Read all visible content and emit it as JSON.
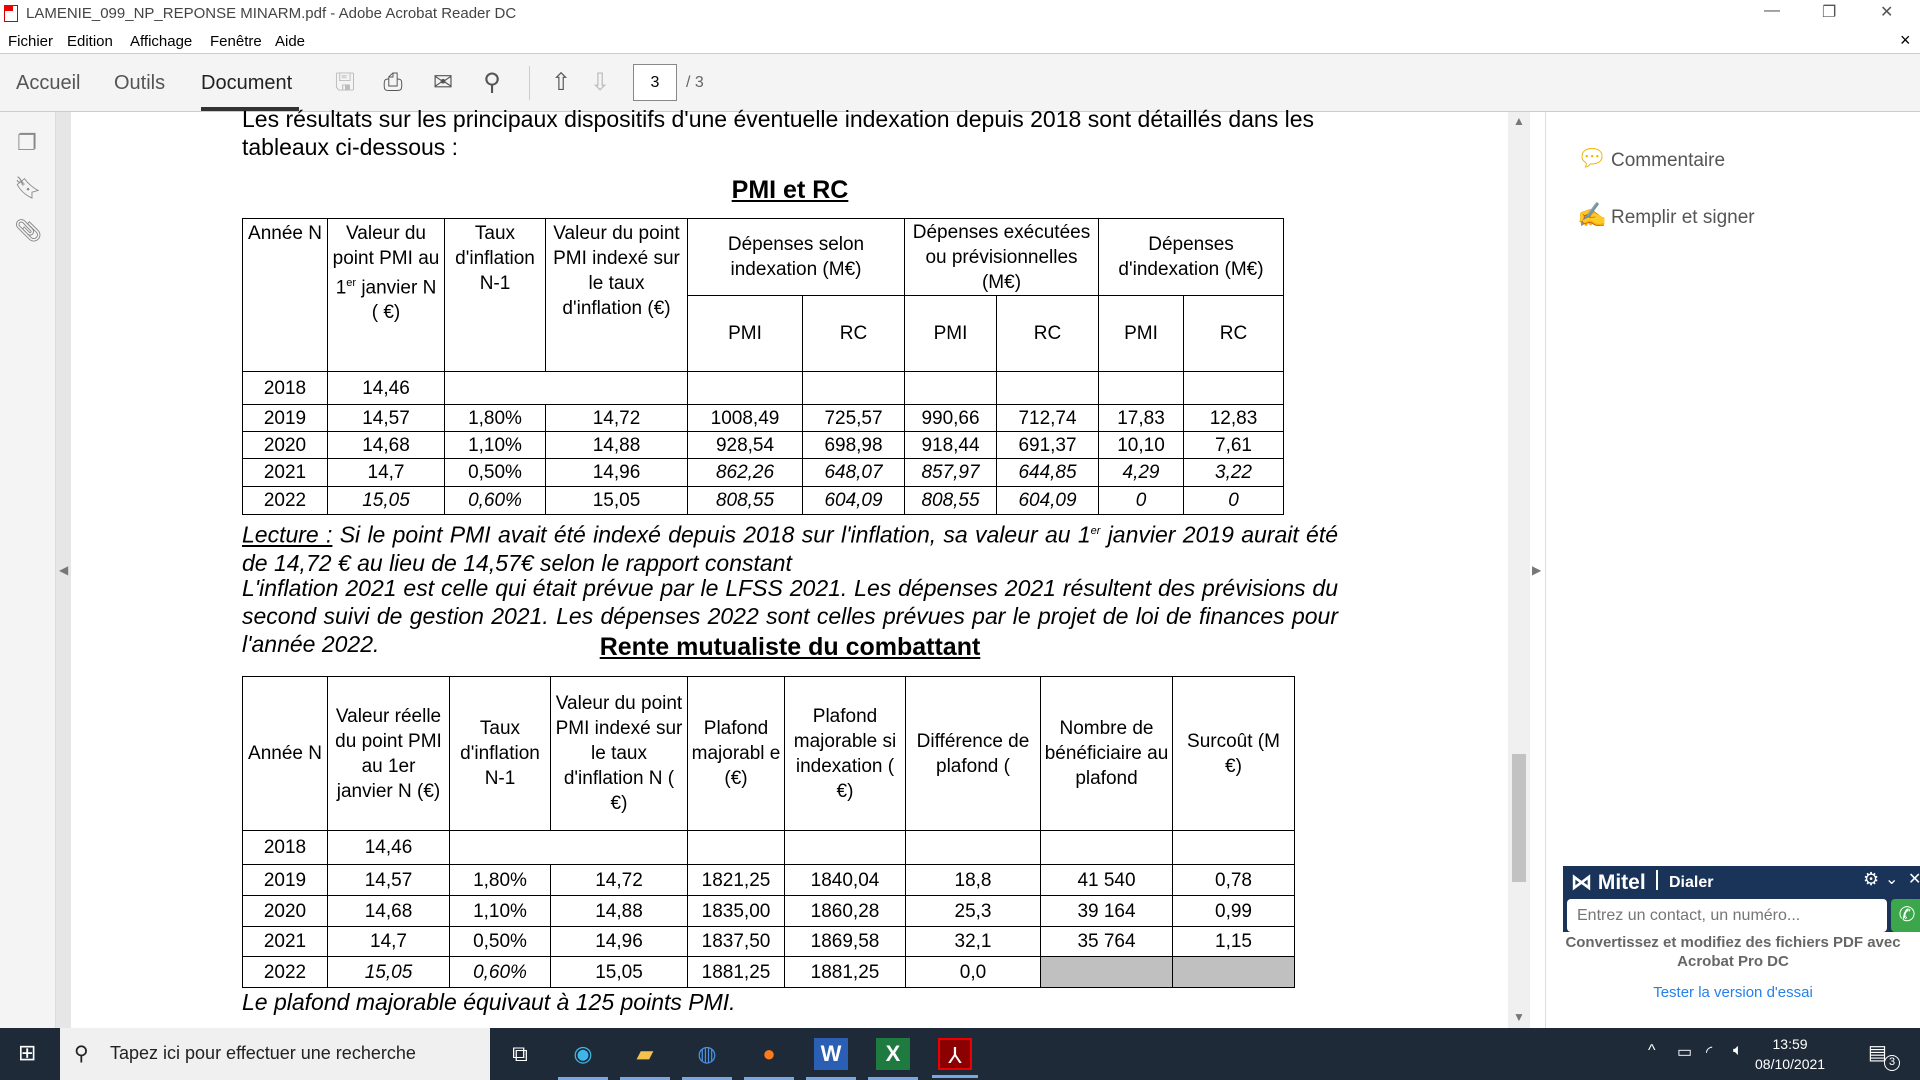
{
  "window": {
    "title": "LAMENIE_099_NP_REPONSE MINARM.pdf - Adobe Acrobat Reader DC",
    "minimize": "—",
    "restore": "❐",
    "close": "✕"
  },
  "menu": [
    "Fichier",
    "Edition",
    "Affichage",
    "Fenêtre",
    "Aide"
  ],
  "menu_close": "×",
  "toolbar": {
    "tabs": [
      "Accueil",
      "Outils",
      "Document"
    ],
    "active_tab": "Document",
    "page_current": "3",
    "page_total": "/ 3",
    "icons": [
      "save-icon",
      "print-icon",
      "mail-icon",
      "search-icon",
      "page-up-icon",
      "page-down-icon"
    ]
  },
  "doc": {
    "intro": "Les résultats sur les principaux dispositifs d'une éventuelle indexation depuis 2018 sont détaillés dans les tableaux ci-dessous :",
    "title1": "PMI et RC",
    "table1": {
      "headers": {
        "annee": "Année N",
        "valeur_a": "Valeur du point PMI au 1",
        "valeur_sup": "er",
        "valeur_b": " janvier N ( €)",
        "taux": "Taux d'inflation N-1",
        "indexe": "Valeur du point PMI indexé sur le taux d'inflation (€)",
        "g1": "Dépenses selon indexation (M€)",
        "g2": "Dépenses exécutées ou prévisionnelles (M€)",
        "g3": "Dépenses d'indexation (M€)",
        "sub": [
          "PMI",
          "RC",
          "PMI",
          "RC",
          "PMI",
          "RC"
        ]
      },
      "rows": [
        {
          "cells": [
            {
              "v": "2018"
            },
            {
              "v": "14,46"
            },
            {
              "v": "",
              "span": 2
            },
            {
              "v": ""
            },
            {
              "v": ""
            },
            {
              "v": ""
            },
            {
              "v": ""
            },
            {
              "v": ""
            },
            {
              "v": ""
            }
          ]
        },
        {
          "cells": [
            {
              "v": "2019"
            },
            {
              "v": "14,57"
            },
            {
              "v": "1,80%"
            },
            {
              "v": "14,72"
            },
            {
              "v": "1008,49"
            },
            {
              "v": "725,57"
            },
            {
              "v": "990,66"
            },
            {
              "v": "712,74"
            },
            {
              "v": "17,83"
            },
            {
              "v": "12,83"
            }
          ]
        },
        {
          "cells": [
            {
              "v": "2020"
            },
            {
              "v": "14,68"
            },
            {
              "v": "1,10%"
            },
            {
              "v": "14,88"
            },
            {
              "v": "928,54"
            },
            {
              "v": "698,98"
            },
            {
              "v": "918,44"
            },
            {
              "v": "691,37"
            },
            {
              "v": "10,10"
            },
            {
              "v": "7,61"
            }
          ]
        },
        {
          "cells": [
            {
              "v": "2021"
            },
            {
              "v": "14,7"
            },
            {
              "v": "0,50%"
            },
            {
              "v": "14,96"
            },
            {
              "v": "862,26",
              "italic": true
            },
            {
              "v": "648,07",
              "italic": true
            },
            {
              "v": "857,97",
              "italic": true
            },
            {
              "v": "644,85",
              "italic": true
            },
            {
              "v": "4,29",
              "italic": true
            },
            {
              "v": "3,22",
              "italic": true
            }
          ]
        },
        {
          "cells": [
            {
              "v": "2022"
            },
            {
              "v": "15,05",
              "italic": true
            },
            {
              "v": "0,60%",
              "italic": true
            },
            {
              "v": "15,05"
            },
            {
              "v": "808,55",
              "italic": true
            },
            {
              "v": "604,09",
              "italic": true
            },
            {
              "v": "808,55",
              "italic": true
            },
            {
              "v": "604,09",
              "italic": true
            },
            {
              "v": "0",
              "italic": true
            },
            {
              "v": "0",
              "italic": true
            }
          ]
        }
      ]
    },
    "lecture_label": "Lecture :",
    "lecture_a": " Si le point PMI avait été indexé depuis 2018 sur l'inflation, sa valeur au 1",
    "lecture_sup": "er",
    "lecture_b": " janvier 2019 aurait été de 14,72 € au lieu de 14,57€ selon le rapport constant",
    "note": "L'inflation 2021 est celle qui était prévue par le LFSS 2021. Les dépenses 2021 résultent des prévisions du second suivi de gestion 2021. Les dépenses 2022 sont celles prévues par le projet de loi de finances pour l'année 2022.",
    "title2": "Rente mutualiste du combattant",
    "table2": {
      "headers": [
        "Année N",
        "Valeur réelle du point PMI au 1er janvier N (€)",
        "Taux d'inflation N-1",
        "Valeur du point PMI indexé sur le taux d'inflation N ( €)",
        "Plafond majorabl e (€)",
        "Plafond majorable si indexation ( €)",
        "Différence de plafond (",
        "Nombre de bénéficiaire au plafond",
        "Surcoût (M €)"
      ],
      "rows": [
        {
          "cells": [
            {
              "v": "2018"
            },
            {
              "v": "14,46"
            },
            {
              "v": "",
              "span": 2
            },
            {
              "v": ""
            },
            {
              "v": ""
            },
            {
              "v": ""
            },
            {
              "v": ""
            },
            {
              "v": ""
            }
          ]
        },
        {
          "cells": [
            {
              "v": "2019"
            },
            {
              "v": "14,57"
            },
            {
              "v": "1,80%"
            },
            {
              "v": "14,72"
            },
            {
              "v": "1821,25"
            },
            {
              "v": "1840,04"
            },
            {
              "v": "18,8"
            },
            {
              "v": "41 540"
            },
            {
              "v": "0,78"
            }
          ]
        },
        {
          "cells": [
            {
              "v": "2020"
            },
            {
              "v": "14,68"
            },
            {
              "v": "1,10%"
            },
            {
              "v": "14,88"
            },
            {
              "v": "1835,00"
            },
            {
              "v": "1860,28"
            },
            {
              "v": "25,3"
            },
            {
              "v": "39 164"
            },
            {
              "v": "0,99"
            }
          ]
        },
        {
          "cells": [
            {
              "v": "2021"
            },
            {
              "v": "14,7"
            },
            {
              "v": "0,50%"
            },
            {
              "v": "14,96"
            },
            {
              "v": "1837,50"
            },
            {
              "v": "1869,58"
            },
            {
              "v": "32,1"
            },
            {
              "v": "35 764"
            },
            {
              "v": "1,15"
            }
          ]
        },
        {
          "cells": [
            {
              "v": "2022"
            },
            {
              "v": "15,05",
              "italic": true
            },
            {
              "v": "0,60%",
              "italic": true
            },
            {
              "v": "15,05"
            },
            {
              "v": "1881,25"
            },
            {
              "v": "1881,25"
            },
            {
              "v": "0,0"
            },
            {
              "v": "",
              "shaded": true
            },
            {
              "v": "",
              "shaded": true
            }
          ]
        }
      ]
    },
    "footnote": "Le plafond majorable équivaut à 125 points PMI."
  },
  "right_panel": {
    "tools": [
      {
        "label": "Commentaire",
        "icon": "comment-icon"
      },
      {
        "label": "Remplir et signer",
        "icon": "fill-sign-icon"
      }
    ],
    "promo": "Convertissez et modifiez des fichiers PDF avec Acrobat Pro DC",
    "trial": "Tester la version d'essai"
  },
  "mitel": {
    "logo": "Mitel",
    "title": "Dialer",
    "placeholder": "Entrez un contact, un numéro..."
  },
  "taskbar": {
    "search_placeholder": "Tapez ici pour effectuer une recherche",
    "time": "13:59",
    "date": "08/10/2021",
    "notifications": "3",
    "apps": [
      "task-view",
      "edge",
      "file-explorer",
      "outlook",
      "firefox",
      "word",
      "excel",
      "acrobat"
    ]
  }
}
